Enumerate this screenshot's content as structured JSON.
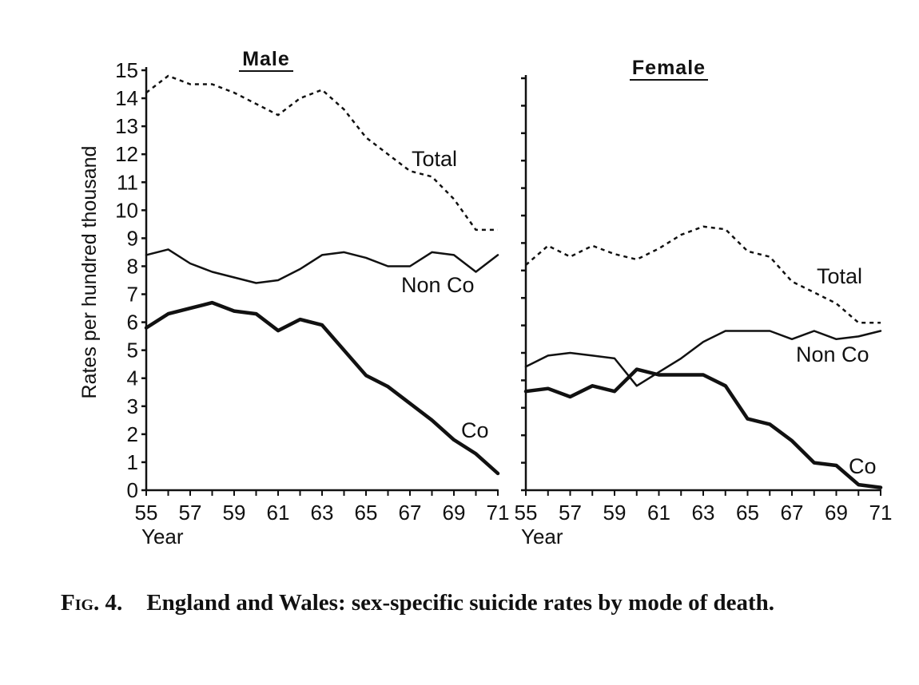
{
  "figure": {
    "number": "Fig. 4.",
    "caption": "England and Wales: sex-specific suicide rates by mode of death."
  },
  "chart_data": [
    {
      "type": "line",
      "title": "Male",
      "xlabel": "Year",
      "ylabel": "Rates per hundred thousand",
      "ylim": [
        0,
        15
      ],
      "xlim": [
        55,
        71
      ],
      "yticks": [
        0,
        1,
        2,
        3,
        4,
        5,
        6,
        7,
        8,
        9,
        10,
        11,
        12,
        13,
        14,
        15
      ],
      "xticks": [
        55,
        57,
        59,
        61,
        63,
        65,
        67,
        69,
        71
      ],
      "x": [
        55,
        56,
        57,
        58,
        59,
        60,
        61,
        62,
        63,
        64,
        65,
        66,
        67,
        68,
        69,
        70,
        71
      ],
      "series": [
        {
          "name": "Total",
          "style": "dashed",
          "values": [
            14.2,
            14.8,
            14.5,
            14.5,
            14.2,
            13.8,
            13.4,
            14.0,
            14.3,
            13.6,
            12.6,
            12.0,
            11.4,
            11.2,
            10.4,
            9.3,
            9.3
          ]
        },
        {
          "name": "Non Co",
          "style": "solid",
          "values": [
            8.4,
            8.6,
            8.1,
            7.8,
            7.6,
            7.4,
            7.5,
            7.9,
            8.4,
            8.5,
            8.3,
            8.0,
            8.0,
            8.5,
            8.4,
            7.8,
            8.4
          ]
        },
        {
          "name": "Co",
          "style": "bold",
          "values": [
            5.8,
            6.3,
            6.5,
            6.7,
            6.4,
            6.3,
            5.7,
            6.1,
            5.9,
            5.0,
            4.1,
            3.7,
            3.1,
            2.5,
            1.8,
            1.3,
            0.6
          ]
        }
      ]
    },
    {
      "type": "line",
      "title": "Female",
      "xlabel": "Year",
      "ylim": [
        0,
        15
      ],
      "xlim": [
        55,
        71
      ],
      "xticks": [
        55,
        57,
        59,
        61,
        63,
        65,
        67,
        69,
        71
      ],
      "x": [
        55,
        56,
        57,
        58,
        59,
        60,
        61,
        62,
        63,
        64,
        65,
        66,
        67,
        68,
        69,
        70,
        71
      ],
      "series": [
        {
          "name": "Total",
          "style": "dashed",
          "values": [
            8.2,
            8.9,
            8.5,
            8.9,
            8.6,
            8.4,
            8.8,
            9.3,
            9.6,
            9.5,
            8.7,
            8.5,
            7.6,
            7.2,
            6.8,
            6.1,
            6.1
          ]
        },
        {
          "name": "Non Co",
          "style": "solid",
          "values": [
            4.5,
            4.9,
            5.0,
            4.9,
            4.8,
            3.8,
            4.3,
            4.8,
            5.4,
            5.8,
            5.8,
            5.8,
            5.5,
            5.8,
            5.5,
            5.6,
            5.8
          ]
        },
        {
          "name": "Co",
          "style": "bold",
          "values": [
            3.6,
            3.7,
            3.4,
            3.8,
            3.6,
            4.4,
            4.2,
            4.2,
            4.2,
            3.8,
            2.6,
            2.4,
            1.8,
            1.0,
            0.9,
            0.2,
            0.1
          ]
        }
      ]
    }
  ]
}
